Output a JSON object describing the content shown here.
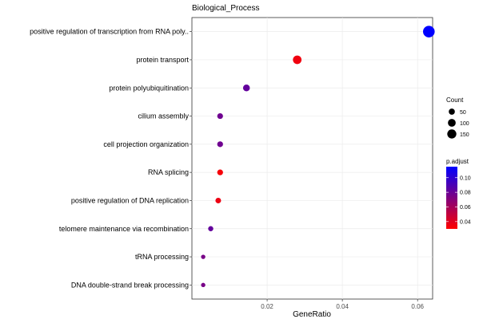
{
  "chart_data": {
    "type": "scatter",
    "title": "Biological_Process",
    "xlabel": "GeneRatio",
    "ylabel": "",
    "xlim": [
      0,
      0.064
    ],
    "xticks": [
      "0.02",
      "0.04",
      "0.06"
    ],
    "grid": true,
    "legend_position": "right",
    "points": [
      {
        "term": "positive regulation of transcription from RNA poly..",
        "gene_ratio": 0.063,
        "count": 160,
        "p_adjust": 0.115
      },
      {
        "term": "protein transport",
        "gene_ratio": 0.028,
        "count": 70,
        "p_adjust": 0.035
      },
      {
        "term": "protein polyubiquitination",
        "gene_ratio": 0.0145,
        "count": 35,
        "p_adjust": 0.082
      },
      {
        "term": "cilium assembly",
        "gene_ratio": 0.0075,
        "count": 20,
        "p_adjust": 0.078
      },
      {
        "term": "cell projection organization",
        "gene_ratio": 0.0075,
        "count": 20,
        "p_adjust": 0.078
      },
      {
        "term": "RNA splicing",
        "gene_ratio": 0.0075,
        "count": 20,
        "p_adjust": 0.033
      },
      {
        "term": "positive regulation of DNA replication",
        "gene_ratio": 0.007,
        "count": 18,
        "p_adjust": 0.036
      },
      {
        "term": "telomere maintenance via recombination",
        "gene_ratio": 0.005,
        "count": 13,
        "p_adjust": 0.082
      },
      {
        "term": "tRNA processing",
        "gene_ratio": 0.003,
        "count": 6,
        "p_adjust": 0.075
      },
      {
        "term": "DNA double-strand break processing",
        "gene_ratio": 0.003,
        "count": 6,
        "p_adjust": 0.075
      }
    ],
    "size_legend": {
      "title": "Count",
      "values": [
        50,
        100,
        150
      ],
      "labels": [
        "50",
        "100",
        "150"
      ]
    },
    "color_legend": {
      "title": "p.adjust",
      "range": [
        0.03,
        0.115
      ],
      "low_color": "#ff0000",
      "high_color": "#0000ff",
      "ticks": [
        0.04,
        0.06,
        0.08,
        0.1
      ],
      "labels": [
        "0.04",
        "0.06",
        "0.08",
        "0.10"
      ]
    }
  }
}
